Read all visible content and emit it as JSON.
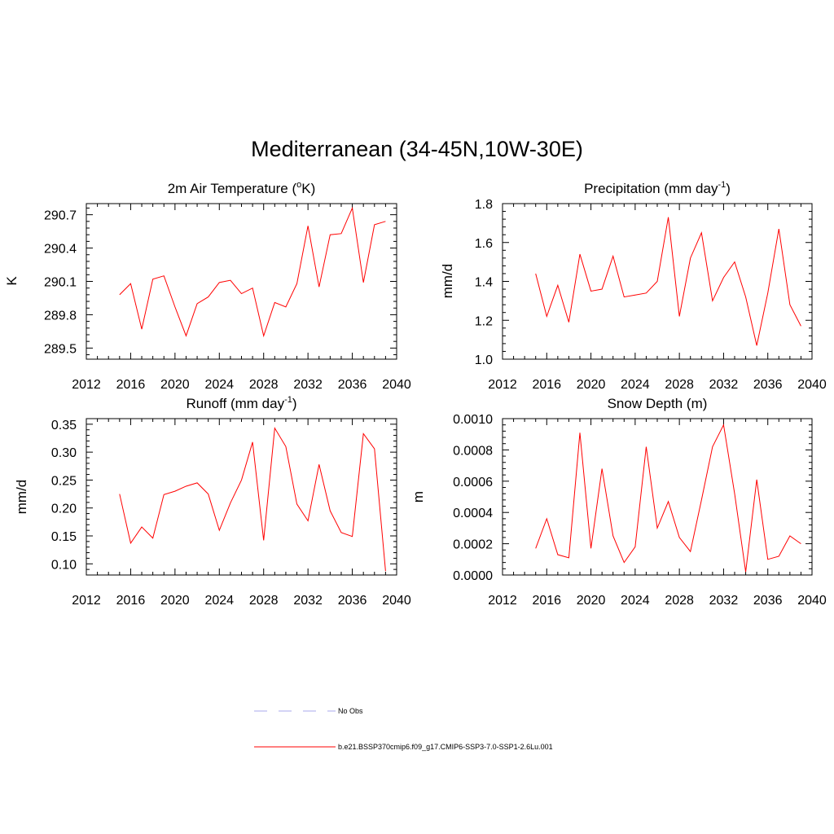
{
  "title": "Mediterranean (34-45N,10W-30E)",
  "colors": {
    "series": "#ff0000",
    "obs": "#aaaaee",
    "axis": "#000000"
  },
  "legend": [
    {
      "label": "No Obs",
      "style": "dashed",
      "color": "#aaaaee"
    },
    {
      "label": "b.e21.BSSP370cmip6.f09_g17.CMIP6-SSP3-7.0-SSP1-2.6Lu.001",
      "style": "solid",
      "color": "#ff0000"
    }
  ],
  "chart_data": [
    {
      "type": "line",
      "title_main": "2m Air Temperature (",
      "title_sup": "o",
      "title_after": "K)",
      "ylabel": "K",
      "xlim": [
        2012,
        2040
      ],
      "ylim": [
        289.4,
        290.8
      ],
      "x_ticks": [
        "2012",
        "2016",
        "2020",
        "2024",
        "2028",
        "2032",
        "2036",
        "2040"
      ],
      "y_ticks": [
        "289.5",
        "289.8",
        "290.1",
        "290.4",
        "290.7"
      ],
      "x": [
        2015,
        2016,
        2017,
        2018,
        2019,
        2020,
        2021,
        2022,
        2023,
        2024,
        2025,
        2026,
        2027,
        2028,
        2029,
        2030,
        2031,
        2032,
        2033,
        2034,
        2035,
        2036,
        2037,
        2038,
        2039
      ],
      "values": [
        289.98,
        290.08,
        289.67,
        290.12,
        290.15,
        289.87,
        289.61,
        289.9,
        289.96,
        290.09,
        290.11,
        289.99,
        290.04,
        289.61,
        289.91,
        289.87,
        290.08,
        290.6,
        290.05,
        290.52,
        290.53,
        290.76,
        290.09,
        290.61,
        290.64
      ]
    },
    {
      "type": "line",
      "title_main": "Precipitation (mm day",
      "title_sup": "-1",
      "title_after": ")",
      "ylabel": "mm/d",
      "xlim": [
        2012,
        2040
      ],
      "ylim": [
        1.0,
        1.8
      ],
      "x_ticks": [
        "2012",
        "2016",
        "2020",
        "2024",
        "2028",
        "2032",
        "2036",
        "2040"
      ],
      "y_ticks": [
        "1.0",
        "1.2",
        "1.4",
        "1.6",
        "1.8"
      ],
      "x": [
        2015,
        2016,
        2017,
        2018,
        2019,
        2020,
        2021,
        2022,
        2023,
        2024,
        2025,
        2026,
        2027,
        2028,
        2029,
        2030,
        2031,
        2032,
        2033,
        2034,
        2035,
        2036,
        2037,
        2038,
        2039
      ],
      "values": [
        1.44,
        1.22,
        1.38,
        1.19,
        1.54,
        1.35,
        1.36,
        1.53,
        1.32,
        1.33,
        1.34,
        1.4,
        1.73,
        1.22,
        1.52,
        1.65,
        1.3,
        1.42,
        1.5,
        1.32,
        1.07,
        1.34,
        1.67,
        1.28,
        1.17
      ]
    },
    {
      "type": "line",
      "title_main": "Runoff (mm day",
      "title_sup": "-1",
      "title_after": ")",
      "ylabel": "mm/d",
      "xlim": [
        2012,
        2040
      ],
      "ylim": [
        0.08,
        0.36
      ],
      "x_ticks": [
        "2012",
        "2016",
        "2020",
        "2024",
        "2028",
        "2032",
        "2036",
        "2040"
      ],
      "y_ticks": [
        "0.10",
        "0.15",
        "0.20",
        "0.25",
        "0.30",
        "0.35"
      ],
      "x": [
        2015,
        2016,
        2017,
        2018,
        2019,
        2020,
        2021,
        2022,
        2023,
        2024,
        2025,
        2026,
        2027,
        2028,
        2029,
        2030,
        2031,
        2032,
        2033,
        2034,
        2035,
        2036,
        2037,
        2038,
        2039
      ],
      "values": [
        0.225,
        0.137,
        0.166,
        0.146,
        0.224,
        0.23,
        0.239,
        0.245,
        0.225,
        0.16,
        0.209,
        0.25,
        0.318,
        0.142,
        0.343,
        0.31,
        0.207,
        0.177,
        0.278,
        0.195,
        0.156,
        0.149,
        0.333,
        0.306,
        0.087
      ]
    },
    {
      "type": "line",
      "title_main": "Snow Depth (m)",
      "title_sup": "",
      "title_after": "",
      "ylabel": "m",
      "xlim": [
        2012,
        2040
      ],
      "ylim": [
        0.0,
        0.001
      ],
      "x_ticks": [
        "2012",
        "2016",
        "2020",
        "2024",
        "2028",
        "2032",
        "2036",
        "2040"
      ],
      "y_ticks": [
        "0.0000",
        "0.0002",
        "0.0004",
        "0.0006",
        "0.0008",
        "0.0010"
      ],
      "x": [
        2015,
        2016,
        2017,
        2018,
        2019,
        2020,
        2021,
        2022,
        2023,
        2024,
        2025,
        2026,
        2027,
        2028,
        2029,
        2030,
        2031,
        2032,
        2033,
        2034,
        2035,
        2036,
        2037,
        2038,
        2039
      ],
      "values": [
        0.00017,
        0.00036,
        0.00013,
        0.00011,
        0.00091,
        0.00017,
        0.00068,
        0.00025,
        8e-05,
        0.00018,
        0.00082,
        0.0003,
        0.00047,
        0.00024,
        0.00015,
        0.00048,
        0.00082,
        0.00096,
        0.00052,
        2e-05,
        0.00061,
        0.0001,
        0.00012,
        0.00025,
        0.0002
      ]
    }
  ]
}
